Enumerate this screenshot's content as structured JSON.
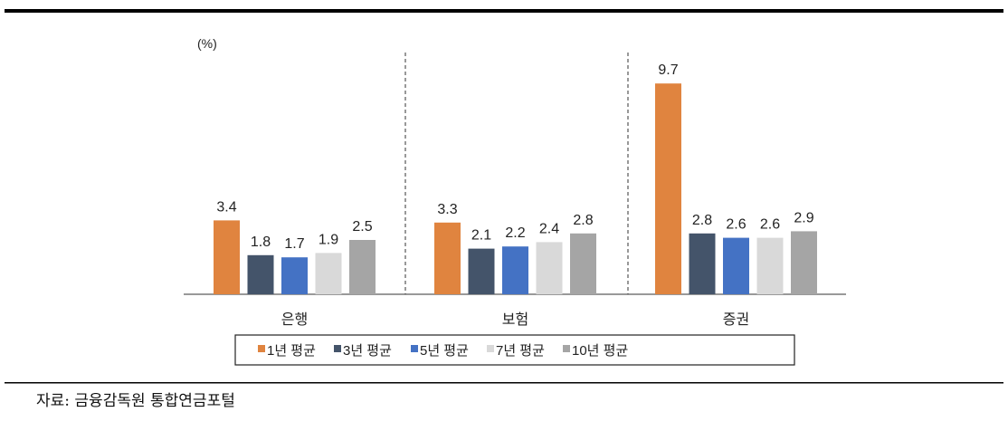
{
  "chart_data": {
    "type": "bar",
    "unit_label": "(%)",
    "categories": [
      "은행",
      "보험",
      "증권"
    ],
    "series": [
      {
        "name": "1년 평균",
        "color": "#E0843F",
        "values": [
          3.4,
          3.3,
          9.7
        ]
      },
      {
        "name": "3년 평균",
        "color": "#44546A",
        "values": [
          1.8,
          2.1,
          2.8
        ]
      },
      {
        "name": "5년 평균",
        "color": "#4472C4",
        "values": [
          1.7,
          2.2,
          2.6
        ]
      },
      {
        "name": "7년 평균",
        "color": "#D9D9D9",
        "values": [
          1.9,
          2.4,
          2.6
        ]
      },
      {
        "name": "10년 평균",
        "color": "#A5A5A5",
        "values": [
          2.5,
          2.8,
          2.9
        ]
      }
    ],
    "ylim": [
      0,
      10
    ],
    "grid": false,
    "legend_position": "bottom",
    "separators": "dashed"
  },
  "source": "자료: 금융감독원 통합연금포털"
}
